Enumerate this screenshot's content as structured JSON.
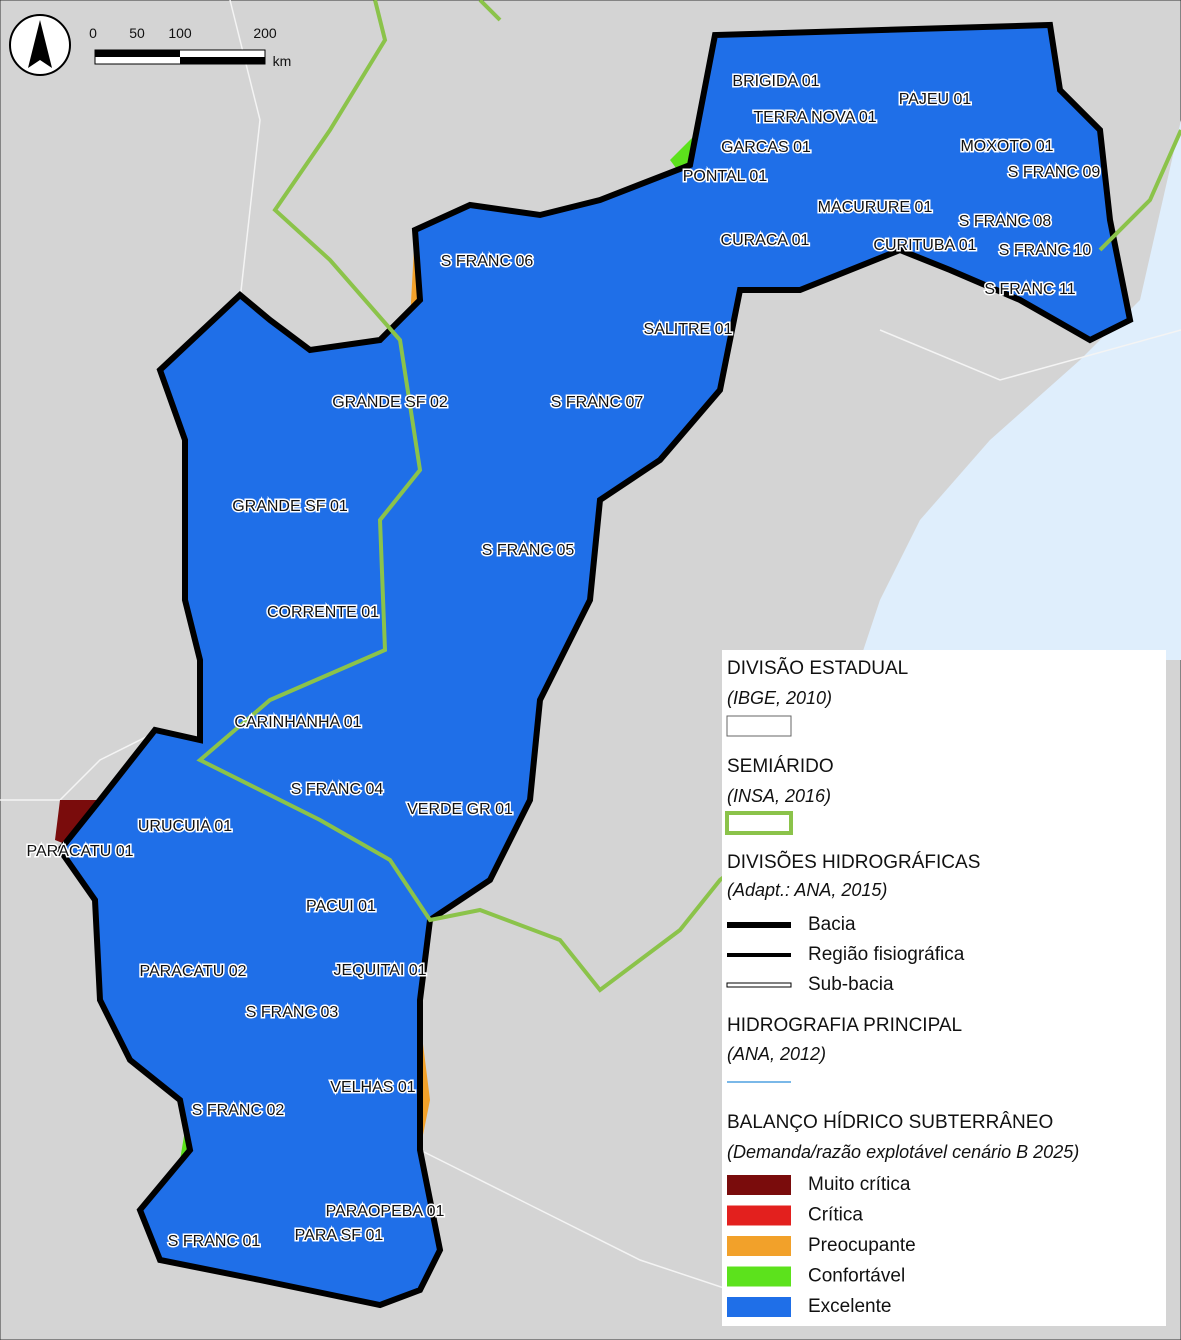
{
  "scale_bar": {
    "ticks": [
      "0",
      "50",
      "100",
      "200"
    ],
    "unit": "km"
  },
  "region_labels": [
    "BRIGIDA 01",
    "TERRA NOVA 01",
    "PAJEU 01",
    "GARCAS 01",
    "MOXOTO 01",
    "PONTAL 01",
    "S FRANC 09",
    "MACURURE 01",
    "S FRANC 08",
    "CURACA 01",
    "CURITUBA 01",
    "S FRANC 10",
    "S FRANC 06",
    "S FRANC 11",
    "SALITRE 01",
    "GRANDE SF 02",
    "S FRANC 07",
    "GRANDE SF 01",
    "S FRANC 05",
    "CORRENTE 01",
    "CARINHANHA 01",
    "S FRANC 04",
    "VERDE GR 01",
    "URUCUIA 01",
    "PARACATU 01",
    "PACUI 01",
    "PARACATU 02",
    "JEQUITAI 01",
    "S FRANC 03",
    "VELHAS 01",
    "S FRANC 02",
    "PARAOPEBA 01",
    "S FRANC 01",
    "PARA SF 01"
  ],
  "legend": {
    "state": {
      "title": "DIVISÃO ESTADUAL",
      "source": "(IBGE, 2010)"
    },
    "semiarid": {
      "title": "SEMIÁRIDO",
      "source": "(INSA, 2016)"
    },
    "hydro_divisions": {
      "title": "DIVISÕES HIDROGRÁFICAS",
      "source": "(Adapt.: ANA, 2015)",
      "items": [
        "Bacia",
        "Região fisiográfica",
        "Sub-bacia"
      ]
    },
    "hydrography": {
      "title": "HIDROGRAFIA PRINCIPAL",
      "source": "(ANA, 2012)"
    },
    "balance": {
      "title": "BALANÇO HÍDRICO SUBTERRÂNEO",
      "source": "(Demanda/razão explotável cenário B 2025)",
      "items": [
        "Muito crítica",
        "Crítica",
        "Preocupante",
        "Confortável",
        "Excelente"
      ]
    }
  }
}
